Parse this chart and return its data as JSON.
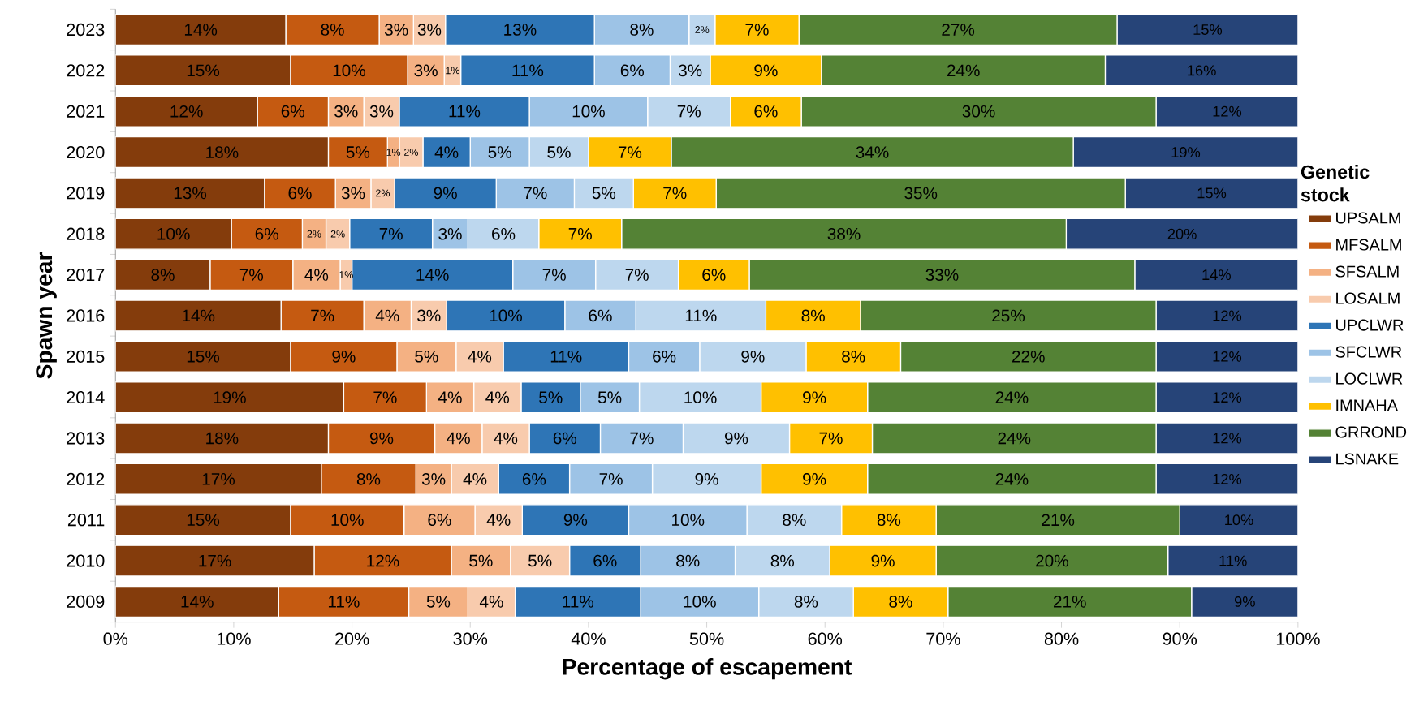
{
  "chart_data": {
    "type": "bar",
    "orientation": "horizontal",
    "stacked": true,
    "xlabel": "Percentage of escapement",
    "ylabel": "Spawn year",
    "legend": "right",
    "legend_title": "Genetic stock",
    "categories": [
      "2023",
      "2022",
      "2021",
      "2020",
      "2019",
      "2018",
      "2017",
      "2016",
      "2015",
      "2014",
      "2013",
      "2012",
      "2011",
      "2010",
      "2009"
    ],
    "xlim": [
      0,
      100
    ],
    "xticks": [
      {
        "value": 0,
        "label": "0%"
      },
      {
        "value": 10,
        "label": "10%"
      },
      {
        "value": 20,
        "label": "20%"
      },
      {
        "value": 30,
        "label": "30%"
      },
      {
        "value": 40,
        "label": "40%"
      },
      {
        "value": 50,
        "label": "50%"
      },
      {
        "value": 60,
        "label": "60%"
      },
      {
        "value": 70,
        "label": "70%"
      },
      {
        "value": 80,
        "label": "80%"
      },
      {
        "value": 90,
        "label": "90%"
      },
      {
        "value": 100,
        "label": "100%"
      }
    ],
    "series": [
      {
        "name": "UPSALM",
        "color": "#843c0c",
        "values": [
          14.4,
          14.8,
          12,
          18,
          12.6,
          9.8,
          8,
          14,
          14.8,
          19.3,
          18,
          17.4,
          14.8,
          16.8,
          13.8
        ],
        "value_labels": [
          "14%",
          "15%",
          "12%",
          "18%",
          "13%",
          "10%",
          "8%",
          "14%",
          "15%",
          "19%",
          "18%",
          "17%",
          "15%",
          "17%",
          "14%"
        ]
      },
      {
        "name": "MFSALM",
        "color": "#c55a11",
        "values": [
          7.9,
          9.9,
          6,
          5,
          6,
          6,
          7,
          7,
          9,
          7,
          9,
          8,
          9.6,
          11.6,
          11
        ],
        "value_labels": [
          "8%",
          "10%",
          "6%",
          "5%",
          "6%",
          "6%",
          "7%",
          "7%",
          "9%",
          "7%",
          "9%",
          "8%",
          "10%",
          "12%",
          "11%"
        ]
      },
      {
        "name": "SFSALM",
        "color": "#f4b183",
        "values": [
          2.9,
          3.1,
          3,
          1,
          3,
          2,
          4,
          4,
          5,
          4,
          4,
          3,
          6,
          5,
          5
        ],
        "value_labels": [
          "3%",
          "3%",
          "3%",
          "1%",
          "3%",
          "2%",
          "4%",
          "4%",
          "5%",
          "4%",
          "4%",
          "3%",
          "6%",
          "5%",
          "5%"
        ]
      },
      {
        "name": "LOSALM",
        "color": "#f8cbad",
        "values": [
          2.7,
          1.4,
          3,
          2,
          2,
          2,
          1,
          3,
          4,
          4,
          4,
          4,
          4,
          5,
          4
        ],
        "value_labels": [
          "3%",
          "1%",
          "3%",
          "2%",
          "2%",
          "2%",
          "1%",
          "3%",
          "4%",
          "4%",
          "4%",
          "4%",
          "4%",
          "5%",
          "4%"
        ]
      },
      {
        "name": "UPCLWR",
        "color": "#2e75b6",
        "values": [
          12.6,
          11.3,
          11,
          4,
          8.6,
          7,
          13.6,
          10,
          10.6,
          5,
          6,
          6,
          9,
          6,
          10.6
        ],
        "value_labels": [
          "13%",
          "11%",
          "11%",
          "4%",
          "9%",
          "7%",
          "14%",
          "10%",
          "11%",
          "5%",
          "6%",
          "6%",
          "9%",
          "6%",
          "11%"
        ]
      },
      {
        "name": "SFCLWR",
        "color": "#9dc3e6",
        "values": [
          8.0,
          6.4,
          10,
          5,
          6.6,
          3,
          7,
          6,
          6,
          5,
          7,
          7,
          10,
          8,
          10
        ],
        "value_labels": [
          "8%",
          "6%",
          "10%",
          "5%",
          "7%",
          "3%",
          "7%",
          "6%",
          "6%",
          "5%",
          "7%",
          "7%",
          "10%",
          "8%",
          "10%"
        ]
      },
      {
        "name": "LOCLWR",
        "color": "#bdd7ee",
        "values": [
          2.2,
          3.4,
          7,
          5,
          5,
          6,
          7,
          11,
          9,
          10.3,
          9,
          9.2,
          8,
          8,
          8
        ],
        "value_labels": [
          "2%",
          "3%",
          "7%",
          "5%",
          "5%",
          "6%",
          "7%",
          "11%",
          "9%",
          "10%",
          "9%",
          "9%",
          "8%",
          "8%",
          "8%"
        ]
      },
      {
        "name": "IMNAHA",
        "color": "#ffc000",
        "values": [
          7.1,
          9.4,
          6,
          7,
          7,
          7,
          6,
          8,
          8,
          9,
          7,
          9,
          8,
          9,
          8
        ],
        "value_labels": [
          "7%",
          "9%",
          "6%",
          "7%",
          "7%",
          "7%",
          "6%",
          "8%",
          "8%",
          "9%",
          "7%",
          "9%",
          "8%",
          "9%",
          "8%"
        ]
      },
      {
        "name": "GRROND",
        "color": "#548235",
        "values": [
          26.9,
          24.0,
          30,
          34,
          34.6,
          37.6,
          32.6,
          25,
          21.6,
          24.4,
          24,
          24.4,
          20.6,
          19.6,
          20.6
        ],
        "value_labels": [
          "27%",
          "24%",
          "30%",
          "34%",
          "35%",
          "38%",
          "33%",
          "25%",
          "22%",
          "24%",
          "24%",
          "24%",
          "21%",
          "20%",
          "21%"
        ]
      },
      {
        "name": "LSNAKE",
        "color": "#264478",
        "values": [
          15.3,
          16.3,
          12,
          19,
          14.6,
          19.6,
          13.8,
          12,
          12,
          12,
          12,
          12,
          10,
          11,
          9
        ],
        "value_labels": [
          "15%",
          "16%",
          "12%",
          "19%",
          "15%",
          "20%",
          "14%",
          "12%",
          "12%",
          "12%",
          "12%",
          "12%",
          "10%",
          "11%",
          "9%"
        ]
      }
    ]
  }
}
